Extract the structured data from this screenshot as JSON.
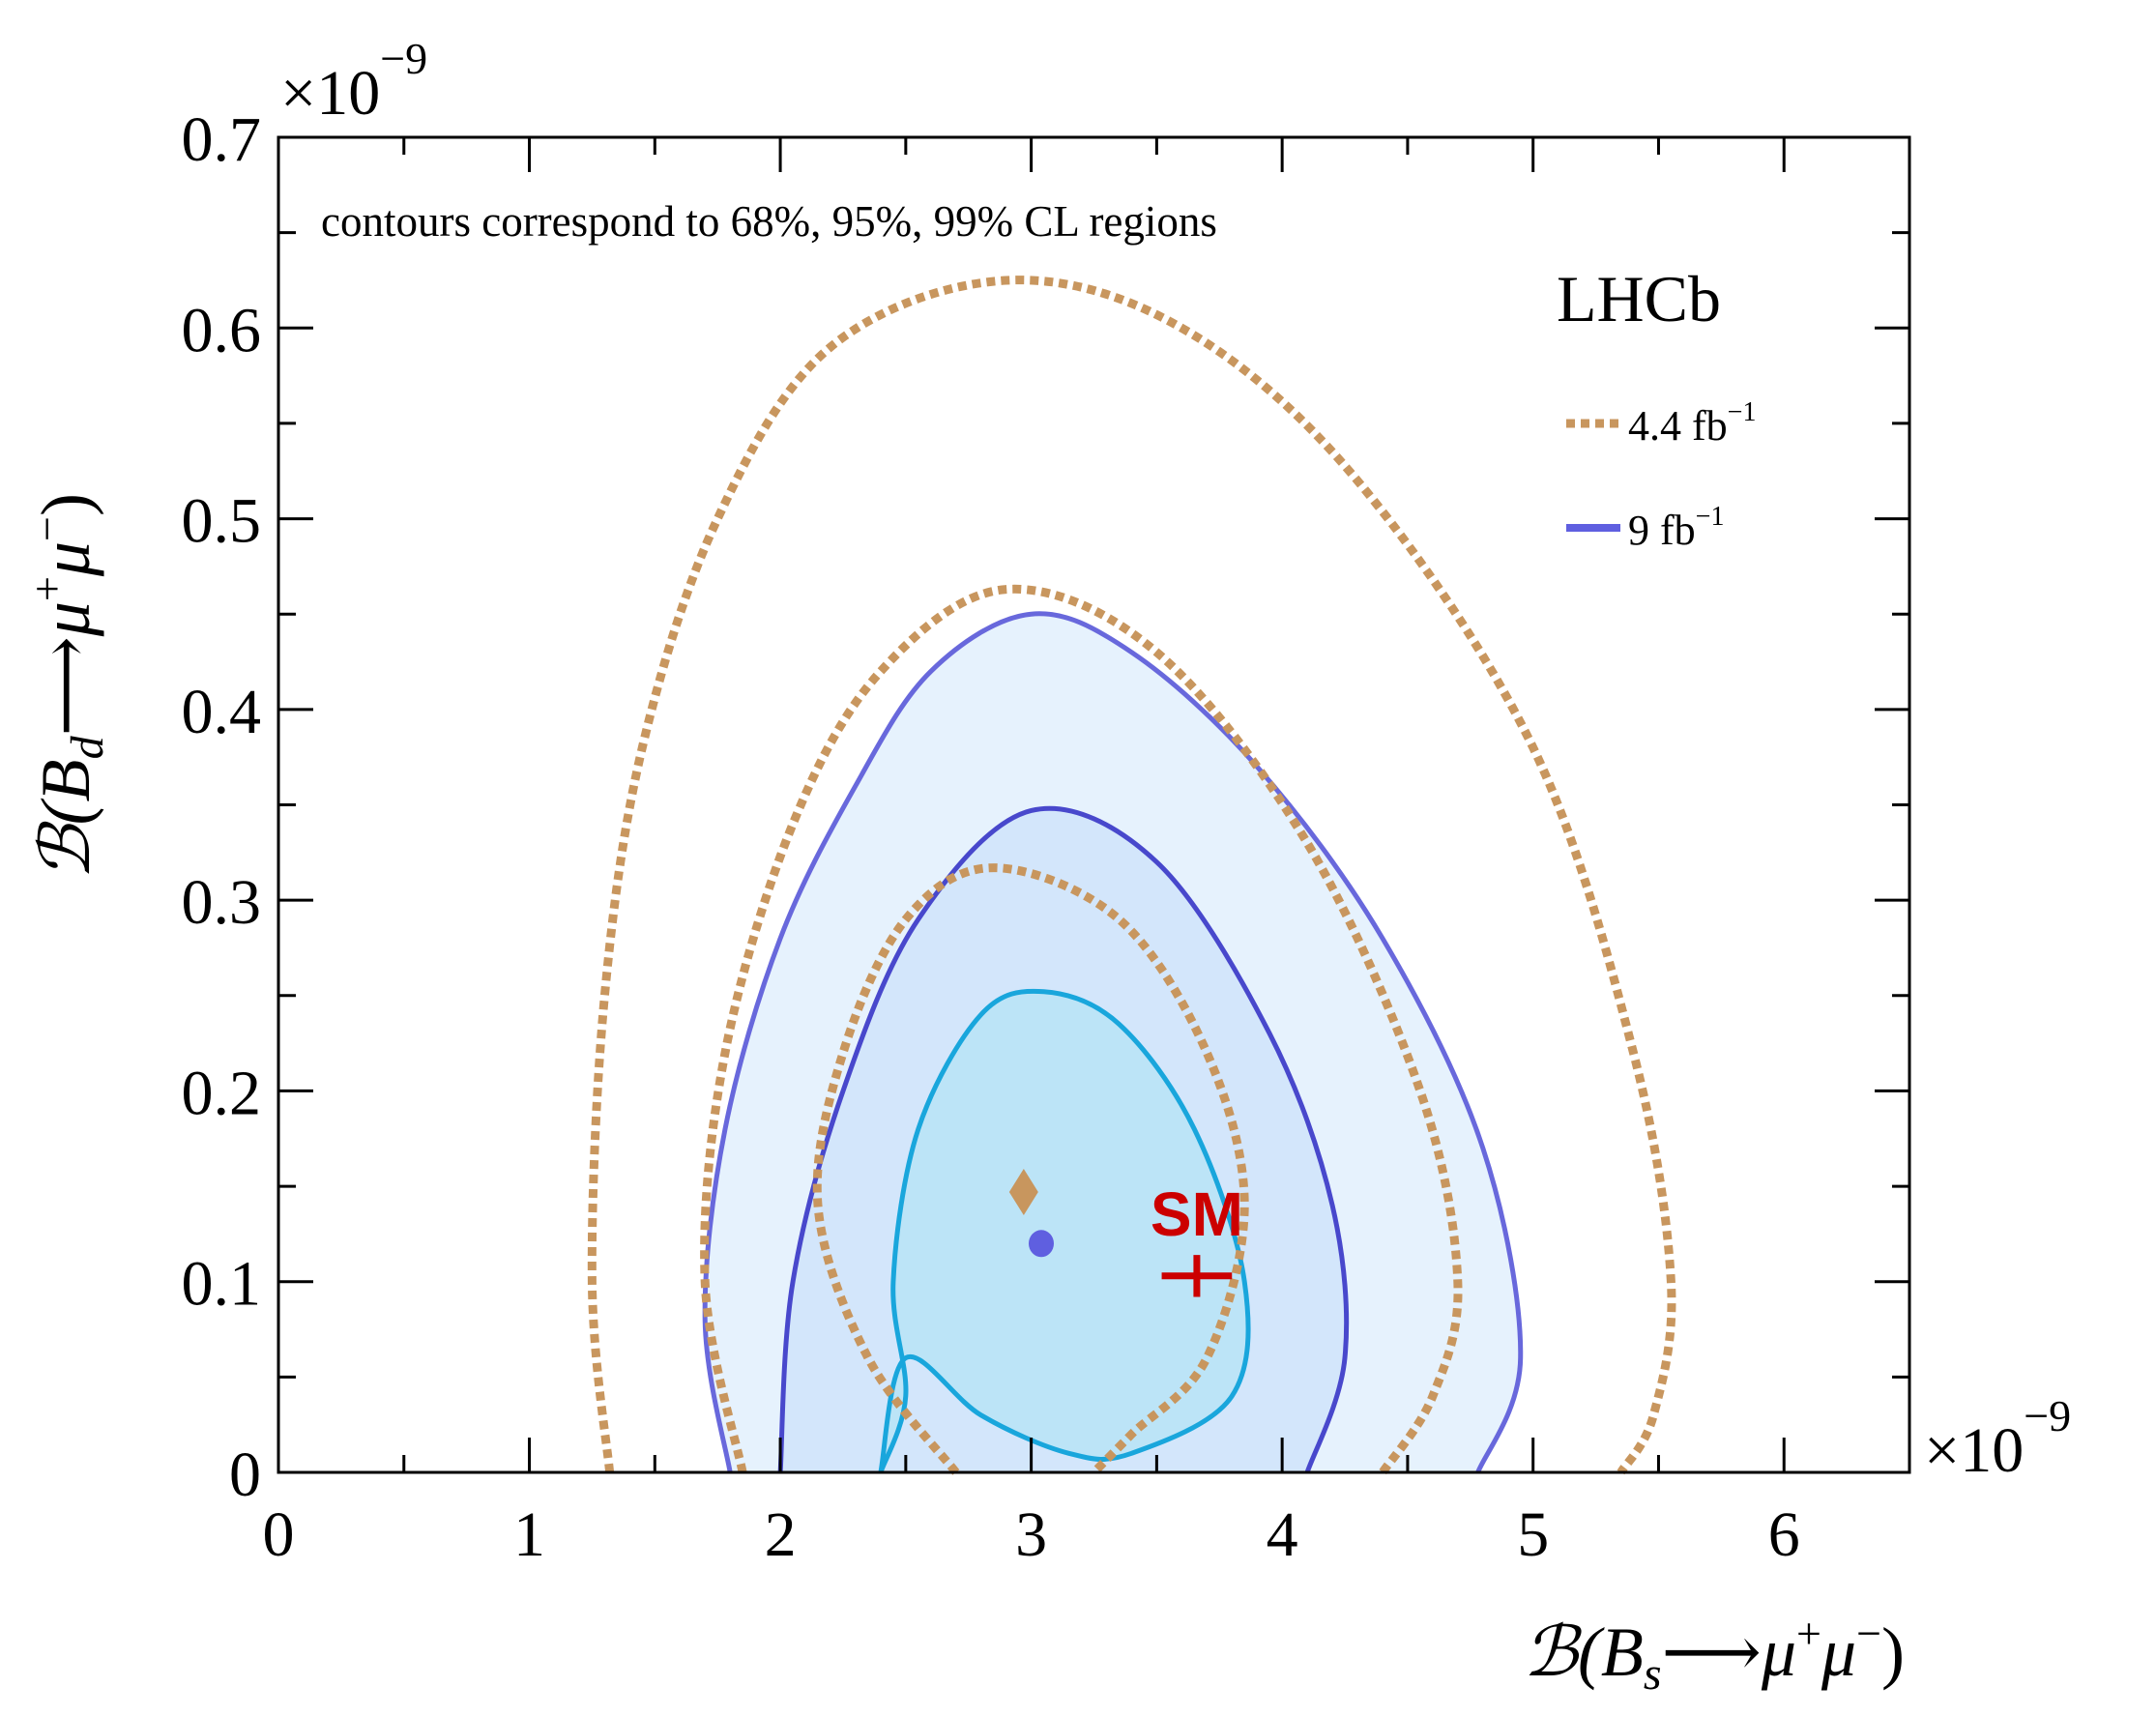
{
  "chart_data": {
    "type": "contour",
    "annotation": "contours correspond to 68%, 95%, 99% CL regions",
    "experiment_label": "LHCb",
    "x_axis": {
      "label_prefix": "ℬ",
      "label_open": "(B",
      "label_sub": "s",
      "label_arrow": "⟶",
      "label_mu1": "μ",
      "label_sup1": "+",
      "label_mu2": "μ",
      "label_sup2": "−",
      "label_close": ")",
      "range": [
        0,
        6.5
      ],
      "ticks": [
        0,
        1,
        2,
        3,
        4,
        5,
        6
      ],
      "tick_labels": [
        "0",
        "1",
        "2",
        "3",
        "4",
        "5",
        "6"
      ],
      "multiplier_base": "×10",
      "multiplier_exp": "−9"
    },
    "y_axis": {
      "label_prefix": "ℬ",
      "label_open": "(B",
      "label_sub": "d",
      "label_arrow": "⟶",
      "label_mu1": "μ",
      "label_sup1": "+",
      "label_mu2": "μ",
      "label_sup2": "−",
      "label_close": ")",
      "range": [
        0,
        0.7
      ],
      "ticks": [
        0,
        0.1,
        0.2,
        0.3,
        0.4,
        0.5,
        0.6,
        0.7
      ],
      "tick_labels": [
        "0",
        "0.1",
        "0.2",
        "0.3",
        "0.4",
        "0.5",
        "0.6",
        "0.7"
      ],
      "multiplier_base": "×10",
      "multiplier_exp": "−9"
    },
    "legend": [
      {
        "label": "4.4 fb",
        "sup": "−1",
        "style": "dotted",
        "color": "#c8965e"
      },
      {
        "label": "9 fb",
        "sup": "−1",
        "style": "solid",
        "color": "#5f5fe0"
      }
    ],
    "series": [
      {
        "name": "9 fb-1 99% CL",
        "style": "solid",
        "color": "#6868dc",
        "fill": "#e6f2fd",
        "points": [
          [
            1.8,
            0
          ],
          [
            1.7,
            0.08
          ],
          [
            1.78,
            0.18
          ],
          [
            2.0,
            0.28
          ],
          [
            2.3,
            0.36
          ],
          [
            2.6,
            0.42
          ],
          [
            3.0,
            0.45
          ],
          [
            3.4,
            0.43
          ],
          [
            3.9,
            0.37
          ],
          [
            4.4,
            0.28
          ],
          [
            4.8,
            0.17
          ],
          [
            4.95,
            0.06
          ],
          [
            4.78,
            0
          ]
        ]
      },
      {
        "name": "9 fb-1 95% CL",
        "style": "solid",
        "color": "#4848cc",
        "fill": "#d3e6fb",
        "points": [
          [
            2.0,
            0
          ],
          [
            2.05,
            0.1
          ],
          [
            2.25,
            0.2
          ],
          [
            2.55,
            0.29
          ],
          [
            3.0,
            0.347
          ],
          [
            3.5,
            0.32
          ],
          [
            3.95,
            0.23
          ],
          [
            4.2,
            0.14
          ],
          [
            4.25,
            0.06
          ],
          [
            4.1,
            0
          ]
        ]
      },
      {
        "name": "9 fb-1 68% CL",
        "style": "solid",
        "color": "#19a6dc",
        "fill": "#bce4f7",
        "points": [
          [
            2.4,
            0
          ],
          [
            2.5,
            0.04
          ],
          [
            2.45,
            0.1
          ],
          [
            2.55,
            0.18
          ],
          [
            2.8,
            0.24
          ],
          [
            3.05,
            0.252
          ],
          [
            3.35,
            0.235
          ],
          [
            3.65,
            0.18
          ],
          [
            3.85,
            0.1
          ],
          [
            3.8,
            0.04
          ],
          [
            3.4,
            0.01
          ],
          [
            3.15,
            0.01
          ],
          [
            2.8,
            0.03
          ],
          [
            2.5,
            0.06
          ],
          [
            2.4,
            0
          ]
        ]
      },
      {
        "name": "4.4 fb-1 99% CL",
        "style": "dotted",
        "color": "#c8965e",
        "points": [
          [
            1.32,
            0
          ],
          [
            1.25,
            0.1
          ],
          [
            1.3,
            0.25
          ],
          [
            1.45,
            0.38
          ],
          [
            1.75,
            0.5
          ],
          [
            2.2,
            0.59
          ],
          [
            2.9,
            0.625
          ],
          [
            3.6,
            0.6
          ],
          [
            4.3,
            0.52
          ],
          [
            5.0,
            0.38
          ],
          [
            5.4,
            0.22
          ],
          [
            5.55,
            0.1
          ],
          [
            5.48,
            0.03
          ],
          [
            5.35,
            0
          ]
        ]
      },
      {
        "name": "4.4 fb-1 95% CL",
        "style": "dotted",
        "color": "#c8965e",
        "points": [
          [
            1.85,
            0
          ],
          [
            1.7,
            0.1
          ],
          [
            1.78,
            0.22
          ],
          [
            2.05,
            0.34
          ],
          [
            2.4,
            0.42
          ],
          [
            2.9,
            0.463
          ],
          [
            3.5,
            0.43
          ],
          [
            4.1,
            0.33
          ],
          [
            4.55,
            0.2
          ],
          [
            4.7,
            0.1
          ],
          [
            4.6,
            0.04
          ],
          [
            4.4,
            0
          ]
        ]
      },
      {
        "name": "4.4 fb-1 68% CL",
        "style": "dotted",
        "color": "#c8965e",
        "points": [
          [
            2.7,
            0
          ],
          [
            2.35,
            0.06
          ],
          [
            2.15,
            0.14
          ],
          [
            2.25,
            0.22
          ],
          [
            2.5,
            0.29
          ],
          [
            2.85,
            0.317
          ],
          [
            3.35,
            0.29
          ],
          [
            3.7,
            0.22
          ],
          [
            3.85,
            0.14
          ],
          [
            3.7,
            0.06
          ],
          [
            3.4,
            0.02
          ],
          [
            3.25,
            0
          ]
        ]
      }
    ],
    "best_fit_points": [
      {
        "name": "4.4 fb-1 best fit",
        "marker": "diamond",
        "x": 2.97,
        "y": 0.147,
        "color": "#c8965e"
      },
      {
        "name": "9 fb-1 best fit",
        "marker": "circle",
        "x": 3.04,
        "y": 0.12,
        "color": "#5f5fe0"
      }
    ],
    "sm_prediction": {
      "label": "SM",
      "x": 3.66,
      "x_err": 0.14,
      "y": 0.103,
      "y_err": 0.005,
      "color": "#cc0000"
    }
  }
}
